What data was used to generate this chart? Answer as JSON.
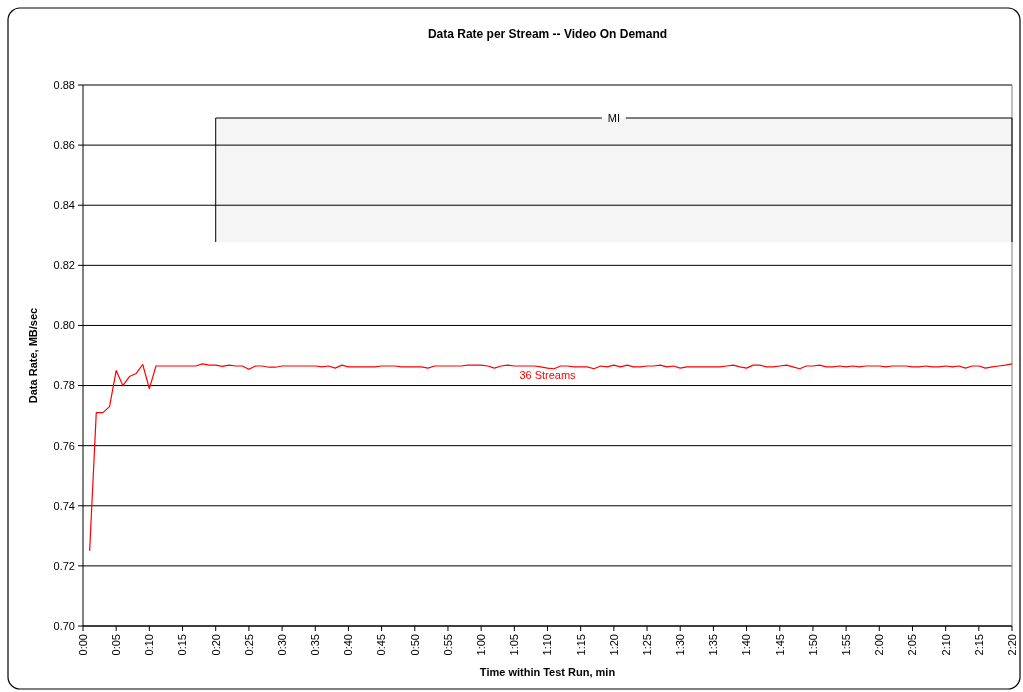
{
  "chart_data": {
    "type": "line",
    "title": "Data Rate per Stream -- Video On Demand",
    "xlabel": "Time within Test Run, min",
    "ylabel": "Data Rate, MB/sec",
    "xlim": [
      0,
      140
    ],
    "xticks": [
      {
        "value": 0,
        "label": "0:00"
      },
      {
        "value": 5,
        "label": "0:05"
      },
      {
        "value": 10,
        "label": "0:10"
      },
      {
        "value": 15,
        "label": "0:15"
      },
      {
        "value": 20,
        "label": "0:20"
      },
      {
        "value": 25,
        "label": "0:25"
      },
      {
        "value": 30,
        "label": "0:30"
      },
      {
        "value": 35,
        "label": "0:35"
      },
      {
        "value": 40,
        "label": "0:40"
      },
      {
        "value": 45,
        "label": "0:45"
      },
      {
        "value": 50,
        "label": "0:50"
      },
      {
        "value": 55,
        "label": "0:55"
      },
      {
        "value": 60,
        "label": "1:00"
      },
      {
        "value": 65,
        "label": "1:05"
      },
      {
        "value": 70,
        "label": "1:10"
      },
      {
        "value": 75,
        "label": "1:15"
      },
      {
        "value": 80,
        "label": "1:20"
      },
      {
        "value": 85,
        "label": "1:25"
      },
      {
        "value": 90,
        "label": "1:30"
      },
      {
        "value": 95,
        "label": "1:35"
      },
      {
        "value": 100,
        "label": "1:40"
      },
      {
        "value": 105,
        "label": "1:45"
      },
      {
        "value": 110,
        "label": "1:50"
      },
      {
        "value": 115,
        "label": "1:55"
      },
      {
        "value": 120,
        "label": "2:00"
      },
      {
        "value": 125,
        "label": "2:05"
      },
      {
        "value": 130,
        "label": "2:10"
      },
      {
        "value": 135,
        "label": "2:15"
      },
      {
        "value": 140,
        "label": "2:20"
      }
    ],
    "ylim": [
      0.7,
      0.88
    ],
    "yticks": [
      {
        "value": 0.7,
        "label": "0.70"
      },
      0.72,
      0.74,
      0.76,
      0.78,
      {
        "value": 0.8,
        "label": "0.80"
      },
      0.82,
      0.84,
      0.86,
      0.88
    ],
    "grid": "y",
    "marker": "none",
    "line_style": "solid",
    "bands": [
      {
        "axis": "x",
        "from": 20,
        "to": 140,
        "label": "MI",
        "color": "#000000"
      }
    ],
    "series": [
      {
        "name": "36 Streams",
        "color": "#ff0000",
        "x": [
          1,
          2,
          3,
          4,
          5,
          6,
          7,
          8,
          9,
          10,
          11,
          12,
          13,
          14,
          15,
          16,
          17,
          18,
          19,
          20,
          21,
          22,
          23,
          24,
          25,
          26,
          27,
          28,
          29,
          30,
          31,
          32,
          33,
          34,
          35,
          36,
          37,
          38,
          39,
          40,
          41,
          42,
          43,
          44,
          45,
          46,
          47,
          48,
          49,
          50,
          51,
          52,
          53,
          54,
          55,
          56,
          57,
          58,
          59,
          60,
          61,
          62,
          63,
          64,
          65,
          66,
          67,
          68,
          69,
          70,
          71,
          72,
          73,
          74,
          75,
          76,
          77,
          78,
          79,
          80,
          81,
          82,
          83,
          84,
          85,
          86,
          87,
          88,
          89,
          90,
          91,
          92,
          93,
          94,
          95,
          96,
          97,
          98,
          99,
          100,
          101,
          102,
          103,
          104,
          105,
          106,
          107,
          108,
          109,
          110,
          111,
          112,
          113,
          114,
          115,
          116,
          117,
          118,
          119,
          120,
          121,
          122,
          123,
          124,
          125,
          126,
          127,
          128,
          129,
          130,
          131,
          132,
          133,
          134,
          135,
          136,
          137,
          138,
          139,
          140
        ],
        "values": [
          0.725,
          0.771,
          0.771,
          0.773,
          0.785,
          0.78,
          0.783,
          0.784,
          0.787,
          0.779,
          0.7865,
          0.7865,
          0.7865,
          0.7865,
          0.7865,
          0.7865,
          0.7865,
          0.7872,
          0.7868,
          0.7868,
          0.7864,
          0.7868,
          0.7865,
          0.7865,
          0.7854,
          0.7865,
          0.7865,
          0.7861,
          0.7861,
          0.7865,
          0.7865,
          0.7865,
          0.7865,
          0.7865,
          0.7865,
          0.7862,
          0.7865,
          0.7858,
          0.7868,
          0.7862,
          0.7862,
          0.7862,
          0.7862,
          0.7862,
          0.7865,
          0.7865,
          0.7865,
          0.7862,
          0.7862,
          0.7862,
          0.7862,
          0.7858,
          0.7865,
          0.7865,
          0.7865,
          0.7865,
          0.7865,
          0.7868,
          0.7868,
          0.7868,
          0.7865,
          0.7858,
          0.7865,
          0.7868,
          0.7865,
          0.7865,
          0.7865,
          0.7865,
          0.7862,
          0.7858,
          0.7856,
          0.7865,
          0.7865,
          0.7862,
          0.7862,
          0.7862,
          0.7856,
          0.7865,
          0.7862,
          0.7868,
          0.7862,
          0.7868,
          0.7862,
          0.7862,
          0.7865,
          0.7865,
          0.7868,
          0.7862,
          0.7865,
          0.7858,
          0.7862,
          0.7862,
          0.7862,
          0.7862,
          0.7862,
          0.7862,
          0.7865,
          0.7868,
          0.7862,
          0.7858,
          0.7868,
          0.7868,
          0.7862,
          0.7862,
          0.7865,
          0.7868,
          0.7862,
          0.7856,
          0.7865,
          0.7865,
          0.7868,
          0.7862,
          0.7862,
          0.7865,
          0.7862,
          0.7865,
          0.7862,
          0.7865,
          0.7865,
          0.7865,
          0.7862,
          0.7865,
          0.7865,
          0.7865,
          0.7862,
          0.7862,
          0.7865,
          0.7862,
          0.7862,
          0.7865,
          0.7862,
          0.7865,
          0.7858,
          0.7865,
          0.7865,
          0.7858,
          0.7862,
          0.7865,
          0.7868,
          0.7872
        ]
      }
    ]
  }
}
